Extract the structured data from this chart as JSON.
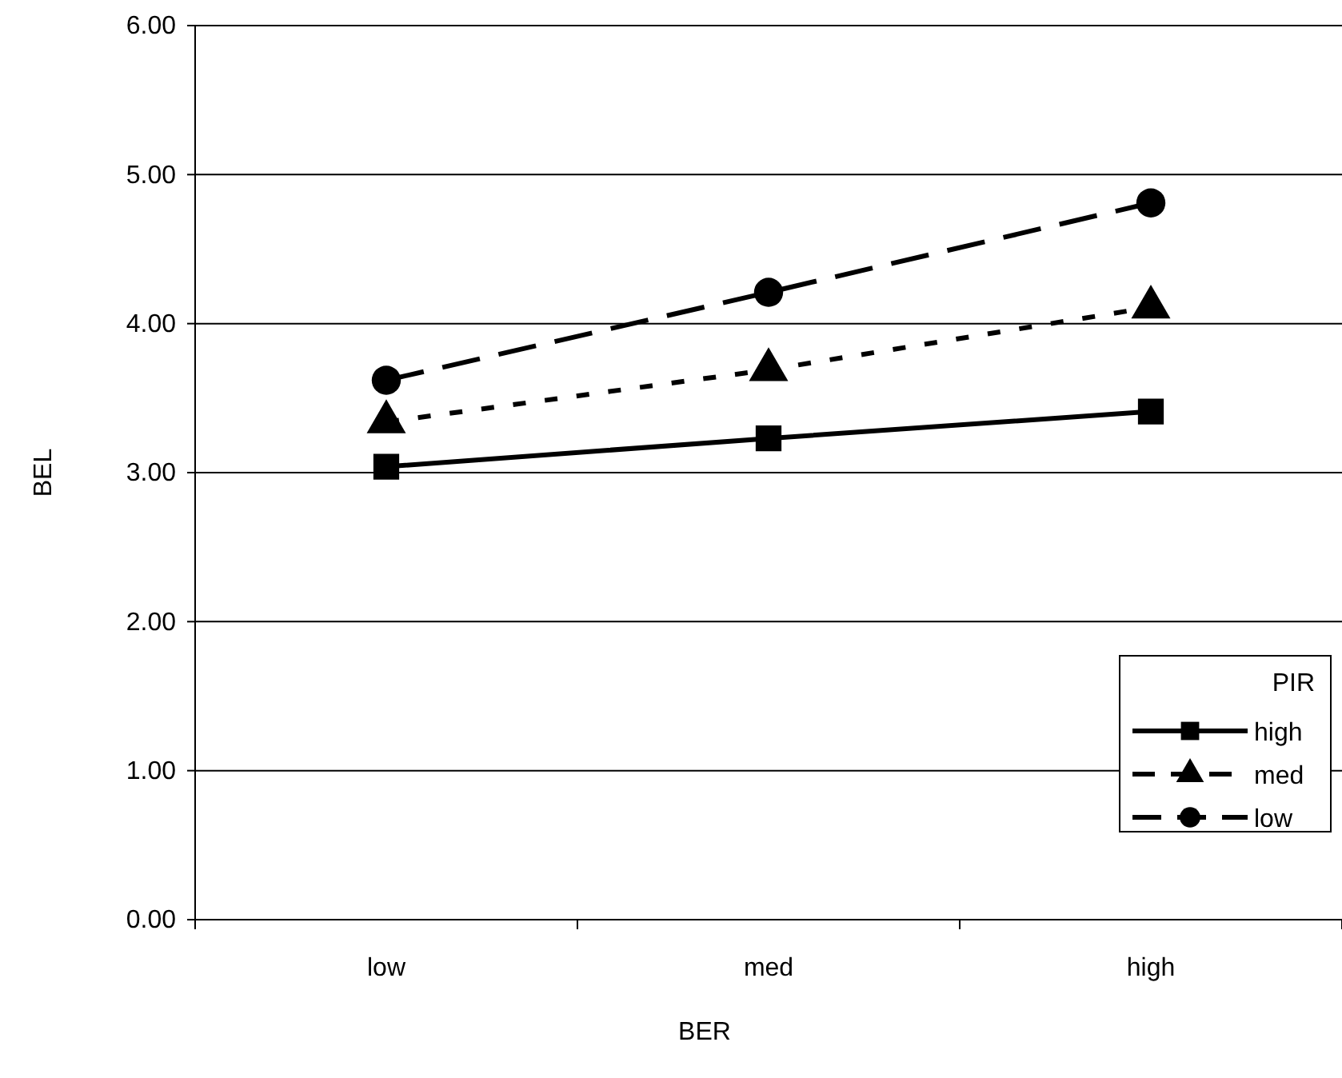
{
  "chart_data": {
    "type": "line",
    "xlabel": "BER",
    "ylabel": "BEL",
    "legend_title": "PIR",
    "categories": [
      "low",
      "med",
      "high"
    ],
    "ylim": [
      0,
      6
    ],
    "yticks": [
      {
        "value": 0,
        "label": "0.00"
      },
      {
        "value": 1,
        "label": "1.00"
      },
      {
        "value": 2,
        "label": "2.00"
      },
      {
        "value": 3,
        "label": "3.00"
      },
      {
        "value": 4,
        "label": "4.00"
      },
      {
        "value": 5,
        "label": "5.00"
      },
      {
        "value": 6,
        "label": "6.00"
      }
    ],
    "grid": "y",
    "legend": "bottom right",
    "series": [
      {
        "name": "high",
        "color": "#000000",
        "marker": "square",
        "line_style": "solid",
        "values": [
          3.04,
          3.23,
          3.41
        ]
      },
      {
        "name": "med",
        "color": "#000000",
        "marker": "triangle",
        "line_style": "dotted",
        "values": [
          3.34,
          3.69,
          4.11
        ]
      },
      {
        "name": "low",
        "color": "#000000",
        "marker": "circle",
        "line_style": "dashed",
        "values": [
          3.62,
          4.21,
          4.81
        ]
      }
    ]
  }
}
